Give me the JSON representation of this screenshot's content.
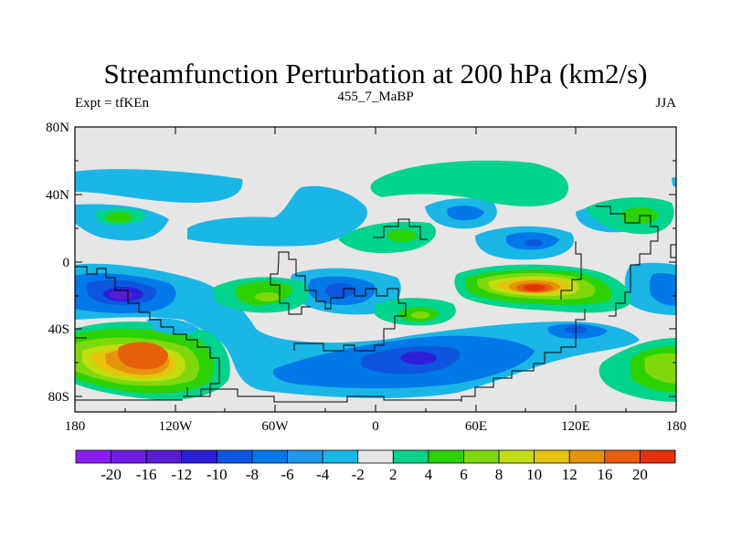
{
  "title": "Streamfunction Perturbation at 200 hPa (km2/s)",
  "left_label": "Expt = tfKEn",
  "center_label": "455_7_MaBP",
  "right_label": "JJA",
  "lat_ticks": [
    "80N",
    "40N",
    "0",
    "40S",
    "80S"
  ],
  "lon_ticks": [
    "180",
    "120W",
    "60W",
    "0",
    "60E",
    "120E",
    "180"
  ],
  "colorbar": {
    "labels": [
      "-20",
      "-16",
      "-12",
      "-10",
      "-8",
      "-6",
      "-4",
      "-2",
      "2",
      "4",
      "6",
      "8",
      "10",
      "12",
      "16",
      "20"
    ],
    "colors": [
      "#8a1ef0",
      "#6e1de6",
      "#5a1ccf",
      "#2d1fd8",
      "#0d56dd",
      "#0078e8",
      "#1f98ea",
      "#1ab6e6",
      "#e6e6e6",
      "#00d38b",
      "#2bd200",
      "#7fd80c",
      "#c1dd10",
      "#e6c40c",
      "#e6930c",
      "#e65f0c",
      "#e6320c"
    ]
  },
  "colors": {
    "background": "#e6e6e6",
    "land_outline": "#000000"
  }
}
